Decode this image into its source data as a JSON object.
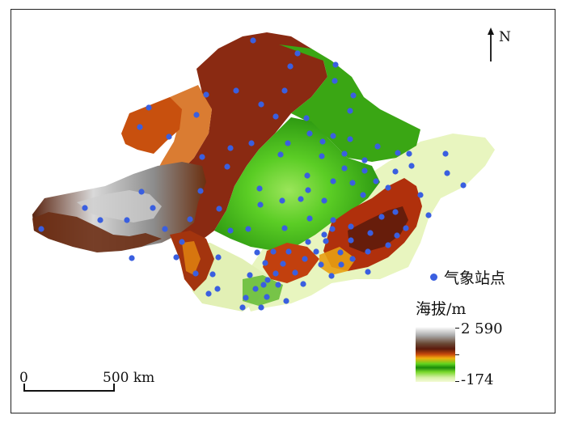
{
  "map": {
    "north_label": "N",
    "station_legend_label": "气象站点",
    "elevation_title": "海拔/m",
    "elevation_max": "2 590",
    "elevation_min": "-174",
    "scale_zero": "0",
    "scale_distance": "500 km",
    "colors": {
      "station": "#3a5fe0",
      "high": "#ffffff",
      "brown": "#5b1a0c",
      "orange": "#d9730d",
      "yellow": "#f0b41a",
      "green": "#45b818",
      "lowland": "#e7f5c0"
    }
  }
}
